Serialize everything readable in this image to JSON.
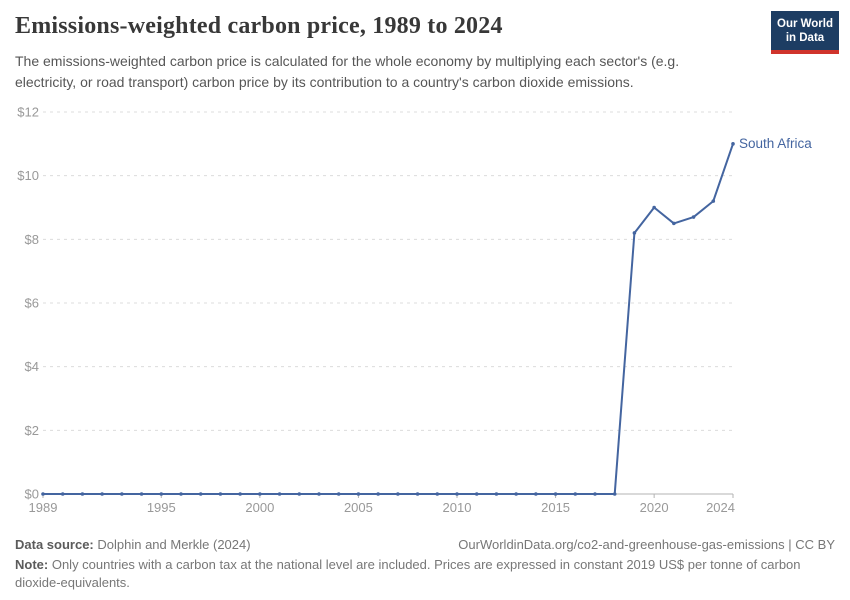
{
  "header": {
    "title": "Emissions-weighted carbon price, 1989 to 2024",
    "subtitle": "The emissions-weighted carbon price is calculated for the whole economy by multiplying each sector's (e.g. electricity, or road transport) carbon price by its contribution to a country's carbon dioxide emissions.",
    "logo": {
      "line1": "Our World",
      "line2": "in Data"
    }
  },
  "chart_data": {
    "type": "line",
    "title": "Emissions-weighted carbon price, 1989 to 2024",
    "xlabel": "",
    "ylabel": "",
    "x": [
      1989,
      1990,
      1991,
      1992,
      1993,
      1994,
      1995,
      1996,
      1997,
      1998,
      1999,
      2000,
      2001,
      2002,
      2003,
      2004,
      2005,
      2006,
      2007,
      2008,
      2009,
      2010,
      2011,
      2012,
      2013,
      2014,
      2015,
      2016,
      2017,
      2018,
      2019,
      2020,
      2021,
      2022,
      2023,
      2024
    ],
    "series": [
      {
        "name": "South Africa",
        "values": [
          0,
          0,
          0,
          0,
          0,
          0,
          0,
          0,
          0,
          0,
          0,
          0,
          0,
          0,
          0,
          0,
          0,
          0,
          0,
          0,
          0,
          0,
          0,
          0,
          0,
          0,
          0,
          0,
          0,
          0,
          8.2,
          9.0,
          8.5,
          8.7,
          9.2,
          11.0
        ]
      }
    ],
    "end_label": "South Africa",
    "ylim": [
      0,
      12
    ],
    "y_ticks": [
      0,
      2,
      4,
      6,
      8,
      10,
      12
    ],
    "y_tick_labels": [
      "$0",
      "$2",
      "$4",
      "$6",
      "$8",
      "$10",
      "$12"
    ],
    "x_ticks": [
      1989,
      1995,
      2000,
      2005,
      2010,
      2015,
      2020,
      2024
    ],
    "x_tick_labels": [
      "1989",
      "1995",
      "2000",
      "2005",
      "2010",
      "2015",
      "2020",
      "2024"
    ],
    "grid": "horizontal-dashed",
    "legend_position": "end-of-line"
  },
  "footer": {
    "datasource_label": "Data source:",
    "datasource_value": "Dolphin and Merkle (2024)",
    "link": "OurWorldinData.org/co2-and-greenhouse-gas-emissions | CC BY",
    "note_label": "Note:",
    "note_text": "Only countries with a carbon tax at the national level are included. Prices are expressed in constant 2019 US$ per tonne of carbon dioxide-equivalents."
  },
  "colors": {
    "line": "#4465a0",
    "grid": "#dcdcdc",
    "axis": "#b3b3b3",
    "tick_label": "#999999",
    "title": "#383838",
    "subtitle": "#565656",
    "footer": "#777777",
    "logo_bg": "#1d3d63",
    "logo_red": "#d0342c"
  }
}
